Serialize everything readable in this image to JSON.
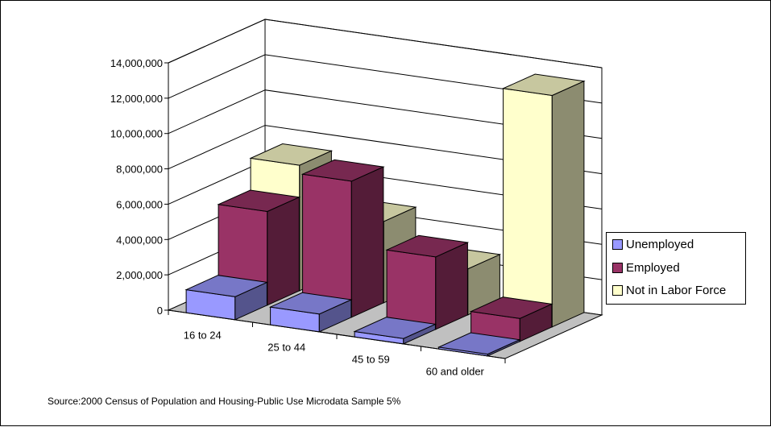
{
  "chart_data": {
    "type": "bar",
    "title": "",
    "xlabel": "",
    "ylabel": "",
    "categories": [
      "16 to 24",
      "25 to 44",
      "45 to 59",
      "60 and older"
    ],
    "y_tick_labels": [
      "0",
      "2,000,000",
      "4,000,000",
      "6,000,000",
      "8,000,000",
      "10,000,000",
      "12,000,000",
      "14,000,000"
    ],
    "ylim": [
      0,
      14000000
    ],
    "grid": true,
    "legend_position": "right",
    "series": [
      {
        "name": "Unemployed",
        "color": "#9999FF",
        "values": [
          1300000,
          1000000,
          300000,
          100000
        ]
      },
      {
        "name": "Employed",
        "color": "#993366",
        "values": [
          5300000,
          7700000,
          4100000,
          1300000
        ]
      },
      {
        "name": "Not in Labor Force",
        "color": "#FFFFCC",
        "values": [
          7100000,
          4600000,
          2600000,
          13100000
        ]
      }
    ]
  },
  "footer": {
    "source": "Source:2000 Census of Population and Housing-Public Use Microdata Sample 5%"
  }
}
